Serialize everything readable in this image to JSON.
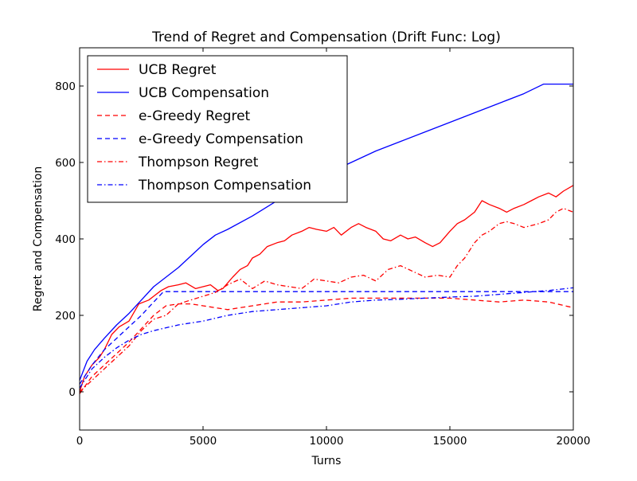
{
  "chart_data": {
    "type": "line",
    "title": "Trend of Regret and Compensation (Drift Func: Log)",
    "xlabel": "Turns",
    "ylabel": "Regret and Compensation",
    "xlim": [
      0,
      20000
    ],
    "ylim": [
      -100,
      900
    ],
    "xticks": [
      0,
      5000,
      10000,
      15000,
      20000
    ],
    "yticks": [
      0,
      200,
      400,
      600,
      800
    ],
    "grid": false,
    "legend_position": "upper-left",
    "series": [
      {
        "name": "UCB Regret",
        "color": "#ff0000",
        "style": "solid",
        "x": [
          0,
          200,
          500,
          800,
          1000,
          1300,
          1600,
          2000,
          2400,
          2800,
          3000,
          3300,
          3600,
          4000,
          4300,
          4700,
          5000,
          5300,
          5600,
          5800,
          6000,
          6200,
          6500,
          6800,
          7000,
          7300,
          7600,
          8000,
          8300,
          8600,
          9000,
          9300,
          9600,
          10000,
          10300,
          10600,
          11000,
          11300,
          11600,
          12000,
          12300,
          12600,
          13000,
          13300,
          13600,
          14000,
          14300,
          14600,
          15000,
          15300,
          15600,
          16000,
          16300,
          16600,
          17000,
          17300,
          17600,
          18000,
          18300,
          18600,
          19000,
          19300,
          19600,
          20000
        ],
        "y": [
          0,
          40,
          70,
          90,
          110,
          150,
          170,
          185,
          230,
          240,
          250,
          265,
          275,
          280,
          285,
          270,
          275,
          280,
          265,
          270,
          285,
          300,
          320,
          330,
          350,
          360,
          380,
          390,
          395,
          410,
          420,
          430,
          425,
          420,
          430,
          410,
          430,
          440,
          430,
          420,
          400,
          395,
          410,
          400,
          405,
          390,
          380,
          390,
          420,
          440,
          450,
          470,
          500,
          490,
          480,
          470,
          480,
          490,
          500,
          510,
          520,
          510,
          525,
          540
        ]
      },
      {
        "name": "UCB Compensation",
        "color": "#0000ff",
        "style": "solid",
        "x": [
          0,
          300,
          600,
          1000,
          1500,
          2000,
          2500,
          3000,
          3500,
          4000,
          4500,
          5000,
          5500,
          6000,
          7000,
          8000,
          9000,
          10000,
          11000,
          12000,
          13000,
          14000,
          15000,
          16000,
          17000,
          18000,
          18800,
          19200,
          20000
        ],
        "y": [
          30,
          80,
          110,
          140,
          175,
          205,
          240,
          275,
          300,
          325,
          355,
          385,
          410,
          425,
          460,
          500,
          535,
          570,
          600,
          630,
          655,
          680,
          705,
          730,
          755,
          780,
          805,
          805,
          805
        ]
      },
      {
        "name": "e-Greedy Regret",
        "color": "#ff0000",
        "style": "dashed",
        "x": [
          0,
          500,
          1000,
          1500,
          2000,
          2500,
          3000,
          3500,
          4000,
          4500,
          5000,
          5500,
          6000,
          6500,
          7000,
          7500,
          8000,
          9000,
          10000,
          11000,
          12000,
          13000,
          14000,
          15000,
          16000,
          17000,
          18000,
          19000,
          20000
        ],
        "y": [
          -5,
          40,
          70,
          100,
          130,
          165,
          200,
          225,
          230,
          230,
          225,
          220,
          215,
          220,
          225,
          230,
          235,
          235,
          240,
          245,
          245,
          245,
          245,
          245,
          240,
          235,
          240,
          235,
          220
        ]
      },
      {
        "name": "e-Greedy Compensation",
        "color": "#0000ff",
        "style": "dashed",
        "x": [
          0,
          500,
          1000,
          1500,
          2000,
          2500,
          3000,
          3400,
          4000,
          5000,
          6000,
          8000,
          10000,
          12000,
          14000,
          16000,
          18000,
          20000
        ],
        "y": [
          20,
          70,
          110,
          140,
          170,
          200,
          235,
          262,
          262,
          262,
          262,
          262,
          262,
          262,
          262,
          262,
          262,
          262
        ]
      },
      {
        "name": "Thompson Regret",
        "color": "#ff0000",
        "style": "dashdot",
        "x": [
          0,
          500,
          1000,
          1500,
          2000,
          2500,
          3000,
          3500,
          4000,
          4500,
          5000,
          5500,
          6000,
          6500,
          7000,
          7500,
          8000,
          8500,
          9000,
          9500,
          10000,
          10500,
          11000,
          11500,
          12000,
          12500,
          13000,
          13500,
          14000,
          14500,
          15000,
          15300,
          15600,
          16000,
          16300,
          16600,
          17000,
          17300,
          17600,
          18000,
          18300,
          18600,
          19000,
          19300,
          19600,
          20000
        ],
        "y": [
          0,
          30,
          60,
          90,
          120,
          160,
          190,
          200,
          230,
          240,
          250,
          260,
          280,
          295,
          270,
          290,
          280,
          275,
          270,
          295,
          290,
          285,
          300,
          305,
          290,
          320,
          330,
          315,
          300,
          305,
          300,
          330,
          350,
          390,
          410,
          420,
          440,
          445,
          440,
          430,
          435,
          440,
          450,
          470,
          480,
          470
        ]
      },
      {
        "name": "Thompson Compensation",
        "color": "#0000ff",
        "style": "dashdot",
        "x": [
          0,
          500,
          1000,
          1500,
          2000,
          2500,
          3000,
          4000,
          5000,
          6000,
          7000,
          8000,
          9000,
          10000,
          11000,
          12000,
          13000,
          14000,
          15000,
          16000,
          17000,
          18000,
          19000,
          20000
        ],
        "y": [
          10,
          60,
          90,
          115,
          135,
          150,
          160,
          175,
          185,
          200,
          210,
          215,
          220,
          225,
          235,
          240,
          242,
          245,
          248,
          250,
          255,
          260,
          265,
          272
        ]
      }
    ]
  }
}
